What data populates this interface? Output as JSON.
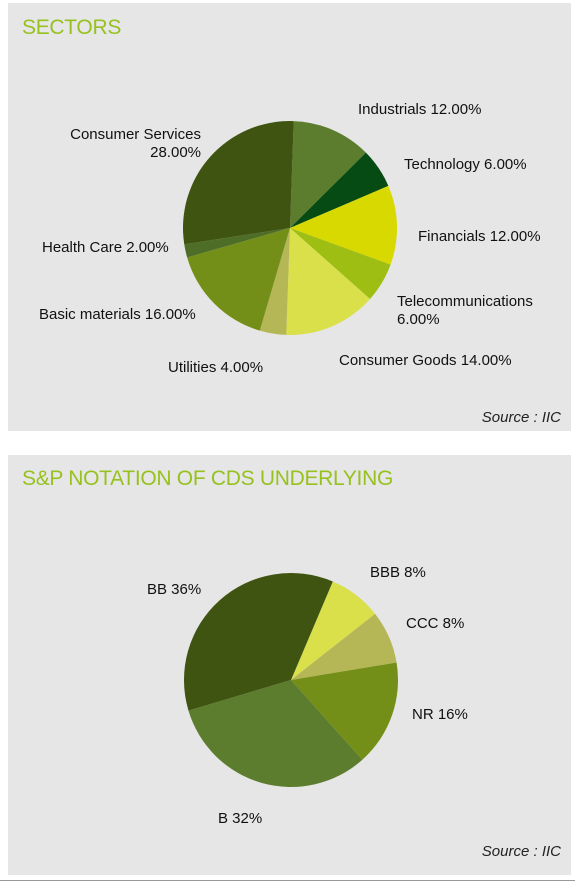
{
  "panels": [
    {
      "title": "SECTORS",
      "source": "Source : IIC"
    },
    {
      "title": "S&P NOTATION OF CDS UNDERLYING",
      "source": "Source : IIC"
    }
  ],
  "chart_data": [
    {
      "type": "pie",
      "title": "SECTORS",
      "slices": [
        {
          "label": "Industrials 12.00%",
          "name": "Industrials",
          "value": 12.0,
          "color": "#5c7d2e"
        },
        {
          "label": "Technology 6.00%",
          "name": "Technology",
          "value": 6.0,
          "color": "#064a14"
        },
        {
          "label": "Financials 12.00%",
          "name": "Financials",
          "value": 12.0,
          "color": "#d7d900"
        },
        {
          "label": "Telecommunications 6.00%",
          "name": "Telecommunications",
          "value": 6.0,
          "color": "#9fbe13"
        },
        {
          "label": "Consumer Goods 14.00%",
          "name": "Consumer Goods",
          "value": 14.0,
          "color": "#d9e04a"
        },
        {
          "label": "Utilities 4.00%",
          "name": "Utilities",
          "value": 4.0,
          "color": "#b5b757"
        },
        {
          "label": "Basic materials 16.00%",
          "name": "Basic materials",
          "value": 16.0,
          "color": "#748f17"
        },
        {
          "label": "Health Care 2.00%",
          "name": "Health Care",
          "value": 2.0,
          "color": "#4e6e28"
        },
        {
          "label": "Consumer Services 28.00%",
          "name": "Consumer Services",
          "value": 28.0,
          "color": "#3e5410"
        }
      ],
      "label_lines": [
        [
          "Industrials 12.00%"
        ],
        [
          "Technology 6.00%"
        ],
        [
          "Financials 12.00%"
        ],
        [
          "Telecommunications",
          "6.00%"
        ],
        [
          "Consumer Goods 14.00%"
        ],
        [
          "Utilities 4.00%"
        ],
        [
          "Basic materials 16.00%"
        ],
        [
          "Health Care 2.00%"
        ],
        [
          "Consumer Services",
          "28.00%"
        ]
      ]
    },
    {
      "type": "pie",
      "title": "S&P NOTATION OF CDS UNDERLYING",
      "slices": [
        {
          "label": "BBB 8%",
          "name": "BBB",
          "value": 8,
          "color": "#d9e04a"
        },
        {
          "label": "CCC 8%",
          "name": "CCC",
          "value": 8,
          "color": "#b5b757"
        },
        {
          "label": "NR 16%",
          "name": "NR",
          "value": 16,
          "color": "#748f17"
        },
        {
          "label": "B 32%",
          "name": "B",
          "value": 32,
          "color": "#5c7d2e"
        },
        {
          "label": "BB 36%",
          "name": "BB",
          "value": 36,
          "color": "#3e5410"
        }
      ],
      "label_lines": [
        [
          "BBB 8%"
        ],
        [
          "CCC 8%"
        ],
        [
          "NR 16%"
        ],
        [
          "B 32%"
        ],
        [
          "BB 36%"
        ]
      ]
    }
  ]
}
